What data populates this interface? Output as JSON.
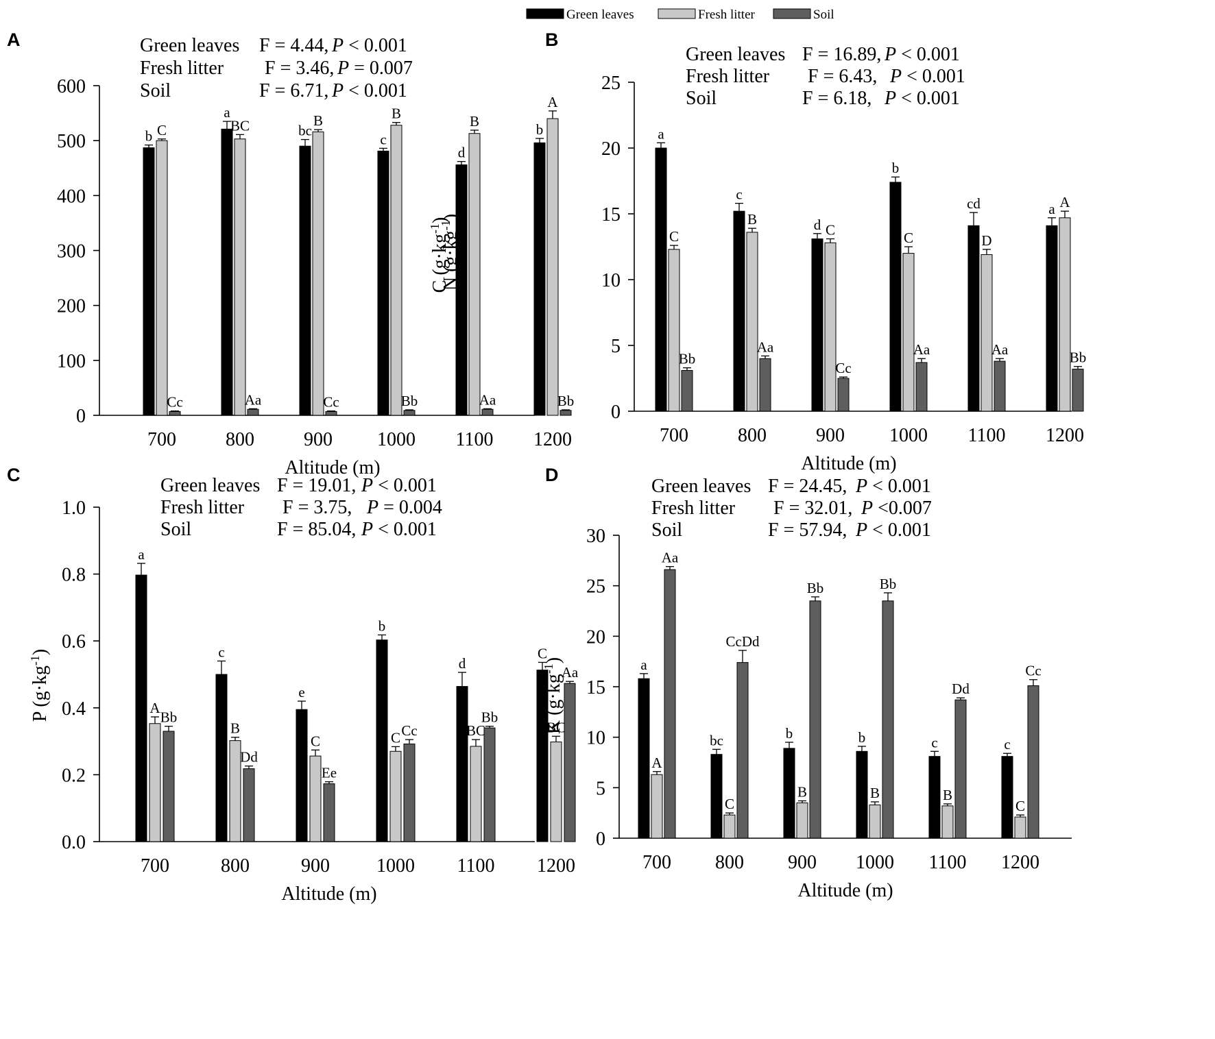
{
  "colors": {
    "green_leaves": "#000000",
    "fresh_litter": "#c8c8c8",
    "soil": "#5e5e5e"
  },
  "legend": [
    "Green leaves",
    "Fresh litter",
    "Soil"
  ],
  "chart_data": [
    {
      "panel": "A",
      "type": "bar",
      "ylabel": "C (g·kg⁻¹)",
      "xlabel": "Altitude (m)",
      "ylim": [
        0,
        600
      ],
      "yticks": [
        0,
        100,
        200,
        300,
        400,
        500,
        600
      ],
      "categories": [
        "700",
        "800",
        "900",
        "1000",
        "1100",
        "1200"
      ],
      "stats": [
        {
          "name": "Green leaves",
          "F": "F = 4.44,",
          "P": "P < 0.001"
        },
        {
          "name": "Fresh litter",
          "F": "F = 3.46,",
          "P": "P = 0.007"
        },
        {
          "name": "Soil",
          "F": "F = 6.71,",
          "P": "P < 0.001"
        }
      ],
      "series": [
        {
          "name": "Green leaves",
          "values": [
            487,
            521,
            490,
            481,
            456,
            496
          ],
          "errors": [
            5,
            14,
            12,
            5,
            6,
            8
          ],
          "labels": [
            "b",
            "a",
            "bc",
            "c",
            "d",
            "b"
          ]
        },
        {
          "name": "Fresh litter",
          "values": [
            500,
            503,
            516,
            528,
            513,
            540
          ],
          "errors": [
            3,
            8,
            4,
            5,
            6,
            14
          ],
          "labels": [
            "C",
            "BC",
            "B",
            "B",
            "B",
            "A"
          ]
        },
        {
          "name": "Soil",
          "values": [
            7,
            11,
            7,
            9,
            11,
            9
          ],
          "errors": [
            1,
            1,
            1,
            1,
            1,
            1
          ],
          "labels": [
            "Cc",
            "Aa",
            "Cc",
            "Bb",
            "Aa",
            "Bb"
          ]
        }
      ]
    },
    {
      "panel": "B",
      "type": "bar",
      "ylabel": "N (g·kg⁻¹)",
      "xlabel": "Altitude (m)",
      "ylim": [
        0,
        25
      ],
      "yticks": [
        0,
        5,
        10,
        15,
        20,
        25
      ],
      "categories": [
        "700",
        "800",
        "900",
        "1000",
        "1100",
        "1200"
      ],
      "stats": [
        {
          "name": "Green leaves",
          "F": "F = 16.89,",
          "P": "P < 0.001"
        },
        {
          "name": "Fresh litter",
          "F": "F = 6.43,",
          "P": "P < 0.001"
        },
        {
          "name": "Soil",
          "F": "F = 6.18,",
          "P": "P < 0.001"
        }
      ],
      "series": [
        {
          "name": "Green leaves",
          "values": [
            20.0,
            15.2,
            13.1,
            17.4,
            14.1,
            14.1
          ],
          "errors": [
            0.4,
            0.6,
            0.4,
            0.4,
            1.0,
            0.6
          ],
          "labels": [
            "a",
            "c",
            "d",
            "b",
            "cd",
            "a"
          ]
        },
        {
          "name": "Fresh litter",
          "values": [
            12.3,
            13.6,
            12.8,
            12.0,
            11.9,
            14.7
          ],
          "errors": [
            0.3,
            0.3,
            0.3,
            0.5,
            0.4,
            0.5
          ],
          "labels": [
            "C",
            "B",
            "C",
            "C",
            "D",
            "A"
          ]
        },
        {
          "name": "Soil",
          "values": [
            3.1,
            4.0,
            2.5,
            3.7,
            3.8,
            3.2
          ],
          "errors": [
            0.2,
            0.2,
            0.1,
            0.3,
            0.2,
            0.2
          ],
          "labels": [
            "Bb",
            "Aa",
            "Cc",
            "Aa",
            "Aa",
            "Bb"
          ]
        }
      ]
    },
    {
      "panel": "C",
      "type": "bar",
      "ylabel": "P (g·kg⁻¹)",
      "xlabel": "Altitude (m)",
      "ylim": [
        0,
        1.0
      ],
      "yticks": [
        0.0,
        0.2,
        0.4,
        0.6,
        0.8,
        1.0
      ],
      "categories": [
        "700",
        "800",
        "900",
        "1000",
        "1100",
        "1200"
      ],
      "stats": [
        {
          "name": "Green leaves",
          "F": "F = 19.01,",
          "P": "P < 0.001"
        },
        {
          "name": "Fresh litter",
          "F": "F = 3.75,",
          "P": "P = 0.004"
        },
        {
          "name": "Soil",
          "F": "F = 85.04,",
          "P": "P < 0.001"
        }
      ],
      "series": [
        {
          "name": "Green leaves",
          "values": [
            0.797,
            0.5,
            0.395,
            0.603,
            0.464,
            0.513
          ],
          "errors": [
            0.035,
            0.04,
            0.025,
            0.015,
            0.042,
            0.023
          ],
          "labels": [
            "a",
            "c",
            "e",
            "b",
            "d",
            "C"
          ]
        },
        {
          "name": "Fresh litter",
          "values": [
            0.353,
            0.302,
            0.256,
            0.27,
            0.285,
            0.298
          ],
          "errors": [
            0.02,
            0.01,
            0.018,
            0.014,
            0.02,
            0.017
          ],
          "labels": [
            "A",
            "B",
            "C",
            "C",
            "BC",
            "BC"
          ]
        },
        {
          "name": "Soil",
          "values": [
            0.33,
            0.218,
            0.173,
            0.292,
            0.34,
            0.473
          ],
          "errors": [
            0.015,
            0.008,
            0.006,
            0.013,
            0.005,
            0.006
          ],
          "labels": [
            "Bb",
            "Dd",
            "Ee",
            "Cc",
            "Bb",
            "Aa"
          ]
        }
      ]
    },
    {
      "panel": "D",
      "type": "bar",
      "ylabel": "K (g·kg⁻¹)",
      "xlabel": "Altitude (m)",
      "ylim": [
        0,
        30
      ],
      "yticks": [
        0,
        5,
        10,
        15,
        20,
        25,
        30
      ],
      "categories": [
        "700",
        "800",
        "900",
        "1000",
        "1100",
        "1200"
      ],
      "stats": [
        {
          "name": "Green leaves",
          "F": "F = 24.45,",
          "P": "P < 0.001"
        },
        {
          "name": "Fresh litter",
          "F": "F = 32.01,",
          "P": "P <0.007"
        },
        {
          "name": "Soil",
          "F": "F = 57.94,",
          "P": "P < 0.001"
        }
      ],
      "series": [
        {
          "name": "Green leaves",
          "values": [
            15.8,
            8.3,
            8.9,
            8.6,
            8.1,
            8.1
          ],
          "errors": [
            0.5,
            0.5,
            0.6,
            0.5,
            0.5,
            0.3
          ],
          "labels": [
            "a",
            "bc",
            "b",
            "b",
            "c",
            "c"
          ]
        },
        {
          "name": "Fresh litter",
          "values": [
            6.3,
            2.3,
            3.5,
            3.3,
            3.2,
            2.1
          ],
          "errors": [
            0.3,
            0.2,
            0.2,
            0.3,
            0.2,
            0.2
          ],
          "labels": [
            "A",
            "C",
            "B",
            "B",
            "B",
            "C"
          ]
        },
        {
          "name": "Soil",
          "values": [
            26.6,
            17.4,
            23.5,
            23.5,
            13.7,
            15.1
          ],
          "errors": [
            0.3,
            1.2,
            0.4,
            0.8,
            0.2,
            0.6
          ],
          "labels": [
            "Aa",
            "CcDd",
            "Bb",
            "Bb",
            "Dd",
            "Cc"
          ]
        }
      ]
    }
  ]
}
